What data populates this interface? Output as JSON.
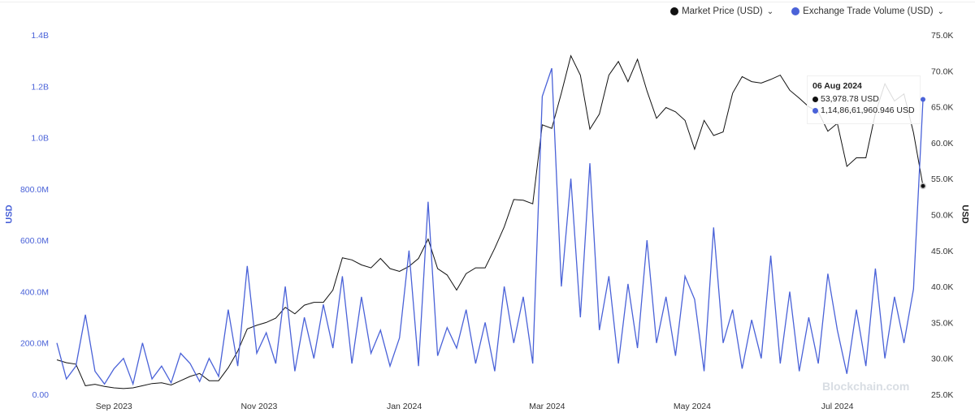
{
  "chart_data": {
    "type": "line",
    "title": "",
    "legend": {
      "placement": "top-right",
      "entries": [
        "Market Price (USD)",
        "Exchange Trade Volume (USD)"
      ]
    },
    "x_ticks": [
      "Sep 2023",
      "Nov 2023",
      "Jan 2024",
      "Mar 2024",
      "May 2024",
      "Jul 2024"
    ],
    "x_tick_dates": [
      "2023-09-01",
      "2023-11-01",
      "2024-01-01",
      "2024-03-01",
      "2024-05-01",
      "2024-07-01"
    ],
    "left_axis": {
      "label": "USD",
      "ylim": [
        0,
        1400000000
      ],
      "ticks": [
        "0.00",
        "200.0M",
        "400.0M",
        "600.0M",
        "800.0M",
        "1.0B",
        "1.2B",
        "1.4B"
      ],
      "color": "#4a62d8"
    },
    "right_axis": {
      "label": "USD",
      "ylim": [
        25000,
        75000
      ],
      "ticks": [
        "25.0K",
        "30.0K",
        "35.0K",
        "40.0K",
        "45.0K",
        "50.0K",
        "55.0K",
        "60.0K",
        "65.0K",
        "70.0K",
        "75.0K"
      ]
    },
    "grid": false,
    "x": [
      "2023-08-08",
      "2023-08-12",
      "2023-08-16",
      "2023-08-20",
      "2023-08-24",
      "2023-08-28",
      "2023-09-01",
      "2023-09-05",
      "2023-09-09",
      "2023-09-13",
      "2023-09-17",
      "2023-09-21",
      "2023-09-25",
      "2023-09-29",
      "2023-10-03",
      "2023-10-07",
      "2023-10-11",
      "2023-10-15",
      "2023-10-19",
      "2023-10-23",
      "2023-10-27",
      "2023-10-31",
      "2023-11-04",
      "2023-11-08",
      "2023-11-12",
      "2023-11-16",
      "2023-11-20",
      "2023-11-24",
      "2023-11-28",
      "2023-12-02",
      "2023-12-06",
      "2023-12-10",
      "2023-12-14",
      "2023-12-18",
      "2023-12-22",
      "2023-12-26",
      "2023-12-30",
      "2024-01-03",
      "2024-01-07",
      "2024-01-11",
      "2024-01-15",
      "2024-01-19",
      "2024-01-23",
      "2024-01-27",
      "2024-01-31",
      "2024-02-04",
      "2024-02-08",
      "2024-02-12",
      "2024-02-16",
      "2024-02-20",
      "2024-02-24",
      "2024-02-28",
      "2024-03-03",
      "2024-03-07",
      "2024-03-11",
      "2024-03-15",
      "2024-03-19",
      "2024-03-23",
      "2024-03-27",
      "2024-03-31",
      "2024-04-04",
      "2024-04-08",
      "2024-04-12",
      "2024-04-16",
      "2024-04-20",
      "2024-04-24",
      "2024-04-28",
      "2024-05-02",
      "2024-05-06",
      "2024-05-10",
      "2024-05-14",
      "2024-05-18",
      "2024-05-22",
      "2024-05-26",
      "2024-05-30",
      "2024-06-03",
      "2024-06-07",
      "2024-06-11",
      "2024-06-15",
      "2024-06-19",
      "2024-06-23",
      "2024-06-27",
      "2024-07-01",
      "2024-07-05",
      "2024-07-09",
      "2024-07-13",
      "2024-07-17",
      "2024-07-21",
      "2024-07-25",
      "2024-07-29",
      "2024-08-02",
      "2024-08-06"
    ],
    "series": [
      {
        "name": "Market Price (USD)",
        "axis": "right",
        "color": "#111111",
        "values": [
          29800,
          29400,
          29200,
          26200,
          26400,
          26100,
          25900,
          25800,
          25900,
          26200,
          26500,
          26600,
          26300,
          26900,
          27500,
          27900,
          26900,
          26900,
          28700,
          31000,
          34100,
          34600,
          35000,
          35600,
          37100,
          36200,
          37400,
          37800,
          37800,
          39500,
          44000,
          43700,
          43000,
          42600,
          43900,
          42500,
          42100,
          42800,
          43900,
          46600,
          42500,
          41600,
          39500,
          41800,
          42600,
          42600,
          45300,
          48300,
          52100,
          52000,
          51500,
          62500,
          62000,
          66900,
          72100,
          69400,
          61900,
          64000,
          69400,
          71300,
          68500,
          71600,
          67200,
          63400,
          64900,
          64300,
          63100,
          59100,
          63100,
          61000,
          61500,
          66900,
          69200,
          68500,
          68300,
          68800,
          69400,
          67300,
          66200,
          65000,
          64300,
          61600,
          62700,
          56700,
          57900,
          57900,
          64100,
          68200,
          65800,
          66800,
          61400,
          53978.78
        ]
      },
      {
        "name": "Exchange Trade Volume (USD)",
        "axis": "left",
        "color": "#4a62d8",
        "values": [
          200000000,
          60000000,
          110000000,
          310000000,
          90000000,
          40000000,
          100000000,
          140000000,
          40000000,
          200000000,
          60000000,
          110000000,
          45000000,
          160000000,
          120000000,
          50000000,
          140000000,
          70000000,
          330000000,
          110000000,
          500000000,
          160000000,
          240000000,
          120000000,
          420000000,
          90000000,
          300000000,
          140000000,
          350000000,
          180000000,
          460000000,
          120000000,
          380000000,
          160000000,
          250000000,
          110000000,
          220000000,
          560000000,
          110000000,
          750000000,
          150000000,
          260000000,
          180000000,
          330000000,
          120000000,
          280000000,
          90000000,
          420000000,
          200000000,
          380000000,
          120000000,
          1160000000,
          1270000000,
          420000000,
          840000000,
          300000000,
          900000000,
          250000000,
          460000000,
          120000000,
          430000000,
          180000000,
          600000000,
          200000000,
          380000000,
          150000000,
          460000000,
          370000000,
          90000000,
          650000000,
          200000000,
          330000000,
          100000000,
          290000000,
          140000000,
          540000000,
          120000000,
          400000000,
          90000000,
          300000000,
          120000000,
          470000000,
          250000000,
          80000000,
          330000000,
          110000000,
          490000000,
          140000000,
          380000000,
          200000000,
          410000000,
          1148661960.946
        ]
      }
    ],
    "tooltip": {
      "date": "06 Aug 2024",
      "price": "53,978.78 USD",
      "volume": "1,14,86,61,960.946 USD"
    },
    "watermark": "Blockchain.com"
  }
}
